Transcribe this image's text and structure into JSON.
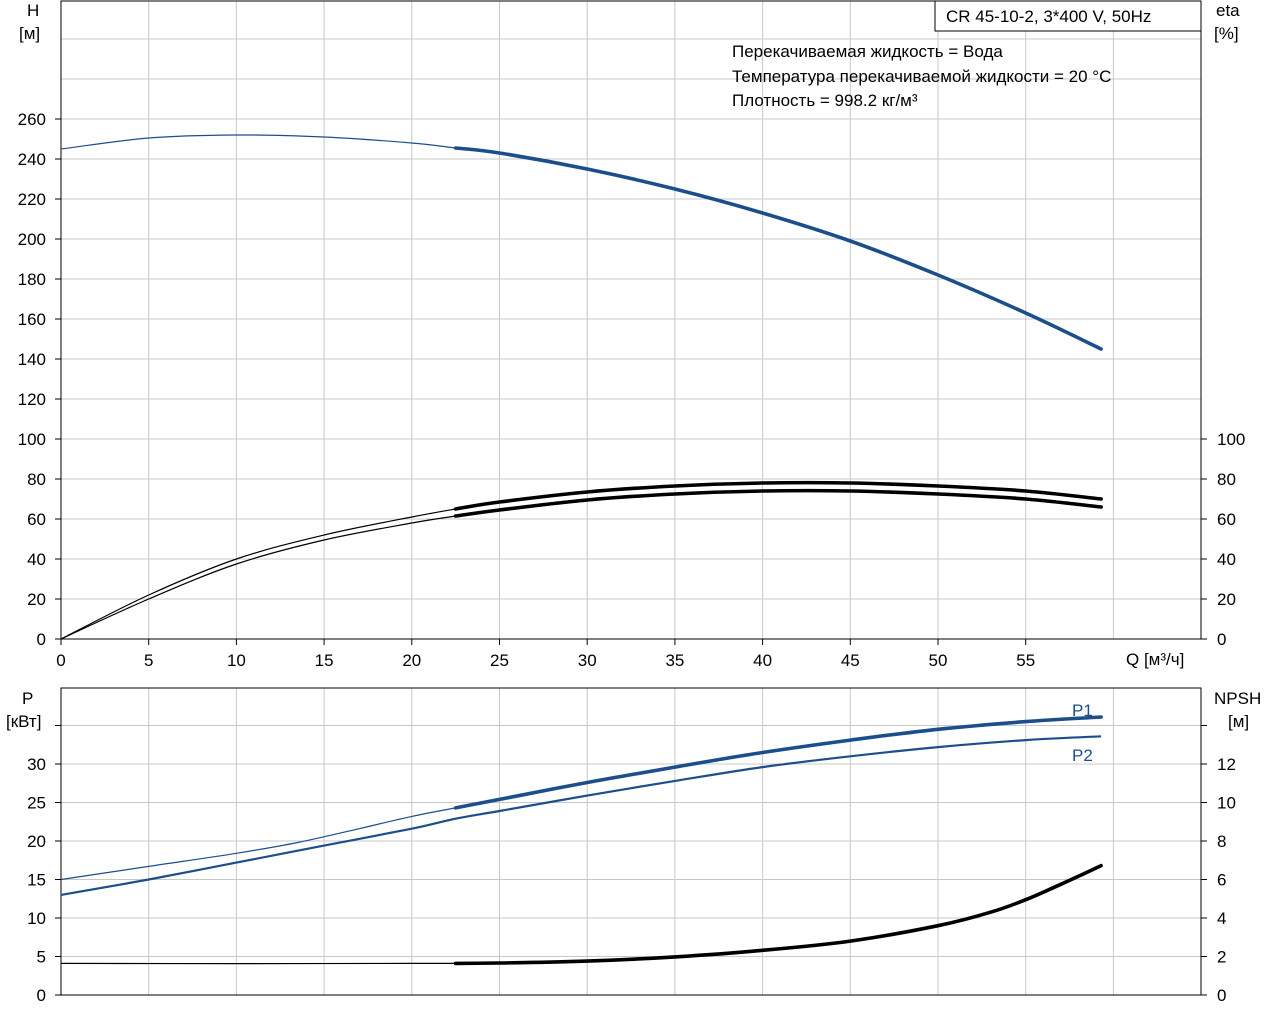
{
  "chart_data": [
    {
      "type": "line",
      "model_label": "CR 45-10-2, 3*400 V, 50Hz",
      "info_lines": [
        "Перекачиваемая жидкость = Вода",
        "Температура перекачиваемой жидкости = 20 °C",
        "Плотность = 998.2 кг/м³"
      ],
      "y_left_label": [
        "H",
        "[м]"
      ],
      "y_right_label": [
        "eta",
        "[%]"
      ],
      "x_label": "Q [м³/ч]",
      "x_ticks": [
        "0",
        "5",
        "10",
        "15",
        "20",
        "25",
        "30",
        "35",
        "40",
        "45",
        "50",
        "55"
      ],
      "y_left_ticks": [
        "0",
        "20",
        "40",
        "60",
        "80",
        "100",
        "120",
        "140",
        "160",
        "180",
        "200",
        "220",
        "240",
        "260"
      ],
      "y_right_ticks": [
        "0",
        "20",
        "40",
        "60",
        "80",
        "100"
      ],
      "xlim": [
        0,
        65
      ],
      "ylim": [
        0,
        320
      ],
      "grid": true,
      "series": [
        {
          "axis": "left",
          "color": "#1c4e8c",
          "heavy_from": 22.5,
          "x": [
            0,
            5,
            10,
            15,
            20,
            22.5,
            25,
            30,
            35,
            40,
            45,
            50,
            55,
            59.3
          ],
          "y": [
            245,
            250.5,
            252,
            251,
            248,
            245.5,
            243,
            235,
            225,
            213,
            199,
            182,
            163,
            145
          ]
        },
        {
          "axis": "right",
          "color": "#000000",
          "heavy_from": 22.5,
          "x": [
            0,
            5,
            10,
            15,
            20,
            22.5,
            25,
            30,
            35,
            40,
            45,
            50,
            55,
            59.3
          ],
          "y": [
            0,
            22,
            40,
            52,
            61,
            65,
            68.5,
            73.5,
            76.5,
            78,
            78,
            76.5,
            74,
            70
          ]
        },
        {
          "axis": "right",
          "color": "#000000",
          "heavy_from": 22.5,
          "x": [
            0,
            5,
            10,
            15,
            20,
            22.5,
            25,
            30,
            35,
            40,
            45,
            50,
            55,
            59.3
          ],
          "y": [
            0,
            20,
            37.5,
            49.5,
            58,
            61.5,
            64.5,
            69.5,
            72.5,
            74,
            74,
            72.5,
            70,
            66
          ]
        }
      ]
    },
    {
      "type": "line",
      "y_left_label": [
        "P",
        "[кВт]"
      ],
      "y_right_label": [
        "NPSH",
        "[м]"
      ],
      "y_left_ticks": [
        "0",
        "5",
        "10",
        "15",
        "20",
        "25",
        "30"
      ],
      "y_right_ticks": [
        "0",
        "2",
        "4",
        "6",
        "8",
        "10",
        "12"
      ],
      "xlim": [
        0,
        65
      ],
      "ylim_left": [
        0,
        40
      ],
      "ylim_right": [
        0,
        16
      ],
      "grid": true,
      "series": [
        {
          "name": "P1",
          "axis": "left",
          "color": "#1c4e8c",
          "heavy_from": 22.5,
          "x": [
            0,
            5,
            10,
            13.5,
            17,
            20,
            22.5,
            25,
            30,
            35,
            40,
            45,
            50,
            55,
            59.3
          ],
          "y": [
            15,
            16.7,
            18.4,
            19.8,
            21.6,
            23.2,
            24.3,
            25.4,
            27.6,
            29.6,
            31.5,
            33.1,
            34.5,
            35.5,
            36.1
          ]
        },
        {
          "name": "P2",
          "axis": "left",
          "color": "#1c4e8c",
          "heavy_from": null,
          "x": [
            0,
            5,
            10,
            15,
            20,
            22.5,
            25,
            30,
            35,
            40,
            45,
            50,
            55,
            59.3
          ],
          "y": [
            13,
            15,
            17.2,
            19.4,
            21.6,
            22.9,
            23.9,
            25.9,
            27.8,
            29.6,
            31,
            32.2,
            33.1,
            33.6
          ]
        },
        {
          "axis": "right",
          "color": "#000000",
          "heavy_from": 22.5,
          "x": [
            0,
            10,
            20,
            22.5,
            25,
            30,
            35,
            40,
            45,
            50,
            53,
            55,
            57,
            59.3
          ],
          "y": [
            1.64,
            1.63,
            1.64,
            1.64,
            1.66,
            1.76,
            1.98,
            2.32,
            2.8,
            3.6,
            4.3,
            4.95,
            5.75,
            6.72
          ]
        }
      ]
    }
  ]
}
